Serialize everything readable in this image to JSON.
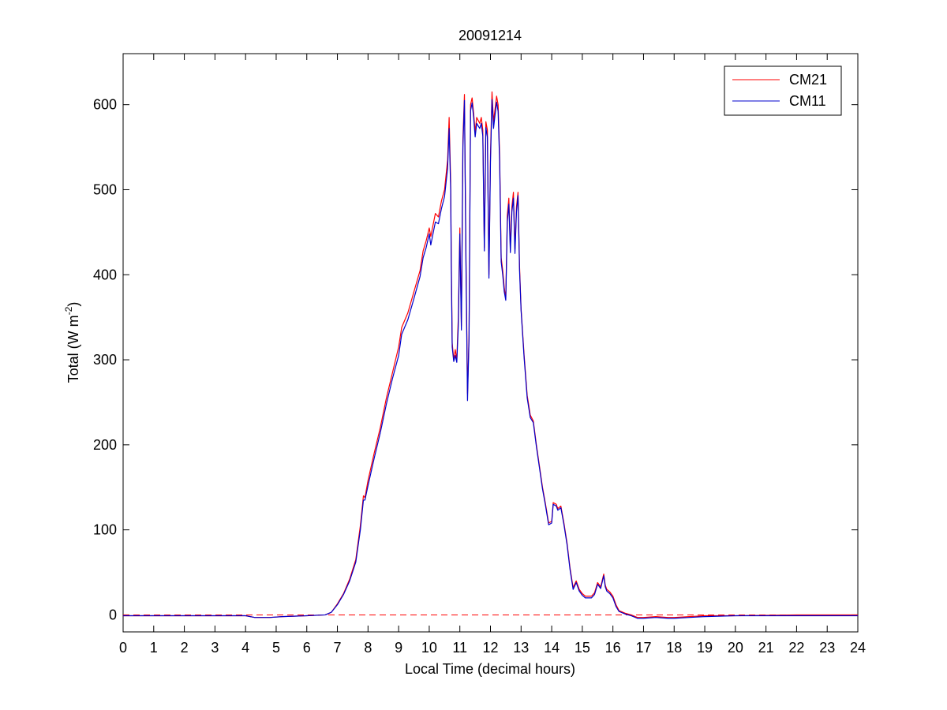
{
  "chart_data": {
    "type": "line",
    "title": "20091214",
    "xlabel": "Local Time (decimal hours)",
    "ylabel": {
      "prefix": "Total (W m",
      "superscript": "-2",
      "suffix": ")"
    },
    "xlim": [
      0,
      24
    ],
    "ylim": [
      -20,
      660
    ],
    "xticks": [
      0,
      1,
      2,
      3,
      4,
      5,
      6,
      7,
      8,
      9,
      10,
      11,
      12,
      13,
      14,
      15,
      16,
      17,
      18,
      19,
      20,
      21,
      22,
      23,
      24
    ],
    "yticks": [
      0,
      100,
      200,
      300,
      400,
      500,
      600
    ],
    "grid": false,
    "legend_position": "top-right",
    "reference_line": {
      "y": 0,
      "style": "dashed",
      "color": "#ff0000"
    },
    "series": [
      {
        "name": "CM21",
        "color": "#ff0000",
        "points": [
          [
            0,
            -1
          ],
          [
            3,
            -1
          ],
          [
            4,
            -1
          ],
          [
            4.3,
            -3
          ],
          [
            4.8,
            -3
          ],
          [
            5.2,
            -2
          ],
          [
            6,
            -1
          ],
          [
            6.6,
            0
          ],
          [
            6.8,
            3
          ],
          [
            7,
            13
          ],
          [
            7.2,
            25
          ],
          [
            7.4,
            42
          ],
          [
            7.6,
            65
          ],
          [
            7.75,
            105
          ],
          [
            7.85,
            140
          ],
          [
            7.9,
            138
          ],
          [
            8,
            158
          ],
          [
            8.2,
            190
          ],
          [
            8.4,
            220
          ],
          [
            8.6,
            255
          ],
          [
            8.8,
            285
          ],
          [
            9,
            315
          ],
          [
            9.1,
            338
          ],
          [
            9.3,
            355
          ],
          [
            9.5,
            380
          ],
          [
            9.7,
            405
          ],
          [
            9.8,
            428
          ],
          [
            9.9,
            440
          ],
          [
            10,
            455
          ],
          [
            10.05,
            445
          ],
          [
            10.2,
            472
          ],
          [
            10.3,
            468
          ],
          [
            10.4,
            487
          ],
          [
            10.5,
            500
          ],
          [
            10.6,
            535
          ],
          [
            10.65,
            585
          ],
          [
            10.7,
            510
          ],
          [
            10.72,
            420
          ],
          [
            10.75,
            320
          ],
          [
            10.8,
            300
          ],
          [
            10.85,
            312
          ],
          [
            10.9,
            300
          ],
          [
            10.95,
            350
          ],
          [
            11,
            455
          ],
          [
            11.05,
            340
          ],
          [
            11.1,
            560
          ],
          [
            11.15,
            612
          ],
          [
            11.2,
            420
          ],
          [
            11.25,
            260
          ],
          [
            11.3,
            330
          ],
          [
            11.35,
            600
          ],
          [
            11.4,
            608
          ],
          [
            11.45,
            590
          ],
          [
            11.5,
            568
          ],
          [
            11.55,
            585
          ],
          [
            11.65,
            578
          ],
          [
            11.7,
            585
          ],
          [
            11.75,
            570
          ],
          [
            11.8,
            432
          ],
          [
            11.85,
            580
          ],
          [
            11.9,
            570
          ],
          [
            11.95,
            400
          ],
          [
            12,
            540
          ],
          [
            12.05,
            615
          ],
          [
            12.1,
            580
          ],
          [
            12.15,
            595
          ],
          [
            12.2,
            610
          ],
          [
            12.25,
            600
          ],
          [
            12.3,
            540
          ],
          [
            12.35,
            420
          ],
          [
            12.4,
            405
          ],
          [
            12.45,
            385
          ],
          [
            12.5,
            372
          ],
          [
            12.55,
            470
          ],
          [
            12.6,
            490
          ],
          [
            12.65,
            432
          ],
          [
            12.7,
            480
          ],
          [
            12.75,
            497
          ],
          [
            12.8,
            430
          ],
          [
            12.85,
            480
          ],
          [
            12.9,
            497
          ],
          [
            12.95,
            410
          ],
          [
            13,
            360
          ],
          [
            13.1,
            305
          ],
          [
            13.2,
            258
          ],
          [
            13.3,
            235
          ],
          [
            13.4,
            228
          ],
          [
            13.5,
            200
          ],
          [
            13.6,
            175
          ],
          [
            13.7,
            150
          ],
          [
            13.8,
            130
          ],
          [
            13.9,
            108
          ],
          [
            14,
            110
          ],
          [
            14.05,
            132
          ],
          [
            14.15,
            130
          ],
          [
            14.2,
            125
          ],
          [
            14.3,
            128
          ],
          [
            14.4,
            108
          ],
          [
            14.5,
            85
          ],
          [
            14.6,
            55
          ],
          [
            14.7,
            32
          ],
          [
            14.8,
            40
          ],
          [
            14.9,
            30
          ],
          [
            15,
            25
          ],
          [
            15.1,
            22
          ],
          [
            15.2,
            22
          ],
          [
            15.3,
            22
          ],
          [
            15.4,
            26
          ],
          [
            15.5,
            38
          ],
          [
            15.6,
            33
          ],
          [
            15.7,
            48
          ],
          [
            15.75,
            35
          ],
          [
            15.8,
            30
          ],
          [
            15.9,
            27
          ],
          [
            16,
            22
          ],
          [
            16.1,
            12
          ],
          [
            16.2,
            5
          ],
          [
            16.4,
            2
          ],
          [
            16.6,
            0
          ],
          [
            16.8,
            -3
          ],
          [
            17,
            -3
          ],
          [
            17.4,
            -2
          ],
          [
            17.8,
            -3
          ],
          [
            18,
            -3
          ],
          [
            18.5,
            -2
          ],
          [
            19,
            -1
          ],
          [
            20,
            -1
          ],
          [
            22,
            0
          ],
          [
            24,
            0
          ]
        ]
      },
      {
        "name": "CM11",
        "color": "#0000cc",
        "points": [
          [
            0,
            -1
          ],
          [
            3,
            -1
          ],
          [
            4,
            -1
          ],
          [
            4.3,
            -3
          ],
          [
            4.8,
            -3
          ],
          [
            5.2,
            -2
          ],
          [
            6,
            -1
          ],
          [
            6.6,
            0
          ],
          [
            6.8,
            3
          ],
          [
            7,
            12
          ],
          [
            7.2,
            24
          ],
          [
            7.4,
            40
          ],
          [
            7.6,
            62
          ],
          [
            7.75,
            100
          ],
          [
            7.85,
            135
          ],
          [
            7.9,
            135
          ],
          [
            8,
            152
          ],
          [
            8.2,
            184
          ],
          [
            8.4,
            214
          ],
          [
            8.6,
            248
          ],
          [
            8.8,
            278
          ],
          [
            9,
            305
          ],
          [
            9.1,
            330
          ],
          [
            9.3,
            347
          ],
          [
            9.5,
            372
          ],
          [
            9.7,
            398
          ],
          [
            9.8,
            420
          ],
          [
            9.9,
            432
          ],
          [
            10,
            448
          ],
          [
            10.05,
            435
          ],
          [
            10.2,
            462
          ],
          [
            10.3,
            460
          ],
          [
            10.4,
            478
          ],
          [
            10.5,
            492
          ],
          [
            10.6,
            525
          ],
          [
            10.65,
            572
          ],
          [
            10.7,
            500
          ],
          [
            10.72,
            410
          ],
          [
            10.75,
            315
          ],
          [
            10.8,
            298
          ],
          [
            10.85,
            305
          ],
          [
            10.9,
            297
          ],
          [
            10.95,
            340
          ],
          [
            11,
            448
          ],
          [
            11.05,
            335
          ],
          [
            11.1,
            550
          ],
          [
            11.15,
            605
          ],
          [
            11.2,
            412
          ],
          [
            11.25,
            252
          ],
          [
            11.3,
            325
          ],
          [
            11.35,
            593
          ],
          [
            11.4,
            602
          ],
          [
            11.45,
            585
          ],
          [
            11.5,
            562
          ],
          [
            11.55,
            578
          ],
          [
            11.65,
            572
          ],
          [
            11.7,
            578
          ],
          [
            11.75,
            563
          ],
          [
            11.8,
            428
          ],
          [
            11.85,
            573
          ],
          [
            11.9,
            562
          ],
          [
            11.95,
            396
          ],
          [
            12,
            532
          ],
          [
            12.05,
            606
          ],
          [
            12.1,
            572
          ],
          [
            12.15,
            588
          ],
          [
            12.2,
            603
          ],
          [
            12.25,
            592
          ],
          [
            12.3,
            532
          ],
          [
            12.35,
            415
          ],
          [
            12.4,
            400
          ],
          [
            12.45,
            380
          ],
          [
            12.5,
            370
          ],
          [
            12.55,
            462
          ],
          [
            12.6,
            483
          ],
          [
            12.65,
            426
          ],
          [
            12.7,
            474
          ],
          [
            12.75,
            490
          ],
          [
            12.8,
            425
          ],
          [
            12.85,
            474
          ],
          [
            12.9,
            493
          ],
          [
            12.95,
            405
          ],
          [
            13,
            358
          ],
          [
            13.1,
            302
          ],
          [
            13.2,
            255
          ],
          [
            13.3,
            232
          ],
          [
            13.4,
            226
          ],
          [
            13.5,
            198
          ],
          [
            13.6,
            173
          ],
          [
            13.7,
            148
          ],
          [
            13.8,
            128
          ],
          [
            13.9,
            106
          ],
          [
            14,
            108
          ],
          [
            14.05,
            130
          ],
          [
            14.15,
            128
          ],
          [
            14.2,
            123
          ],
          [
            14.3,
            126
          ],
          [
            14.4,
            106
          ],
          [
            14.5,
            83
          ],
          [
            14.6,
            53
          ],
          [
            14.7,
            30
          ],
          [
            14.8,
            38
          ],
          [
            14.9,
            28
          ],
          [
            15,
            23
          ],
          [
            15.1,
            20
          ],
          [
            15.2,
            20
          ],
          [
            15.3,
            20
          ],
          [
            15.4,
            24
          ],
          [
            15.5,
            36
          ],
          [
            15.6,
            31
          ],
          [
            15.7,
            46
          ],
          [
            15.75,
            33
          ],
          [
            15.8,
            28
          ],
          [
            15.9,
            25
          ],
          [
            16,
            20
          ],
          [
            16.1,
            10
          ],
          [
            16.2,
            4
          ],
          [
            16.4,
            1
          ],
          [
            16.6,
            -1
          ],
          [
            16.8,
            -4
          ],
          [
            17,
            -4
          ],
          [
            17.4,
            -3
          ],
          [
            17.8,
            -4
          ],
          [
            18,
            -4
          ],
          [
            18.5,
            -3
          ],
          [
            19,
            -2
          ],
          [
            20,
            -1
          ],
          [
            22,
            -1
          ],
          [
            24,
            -1
          ]
        ]
      }
    ]
  }
}
